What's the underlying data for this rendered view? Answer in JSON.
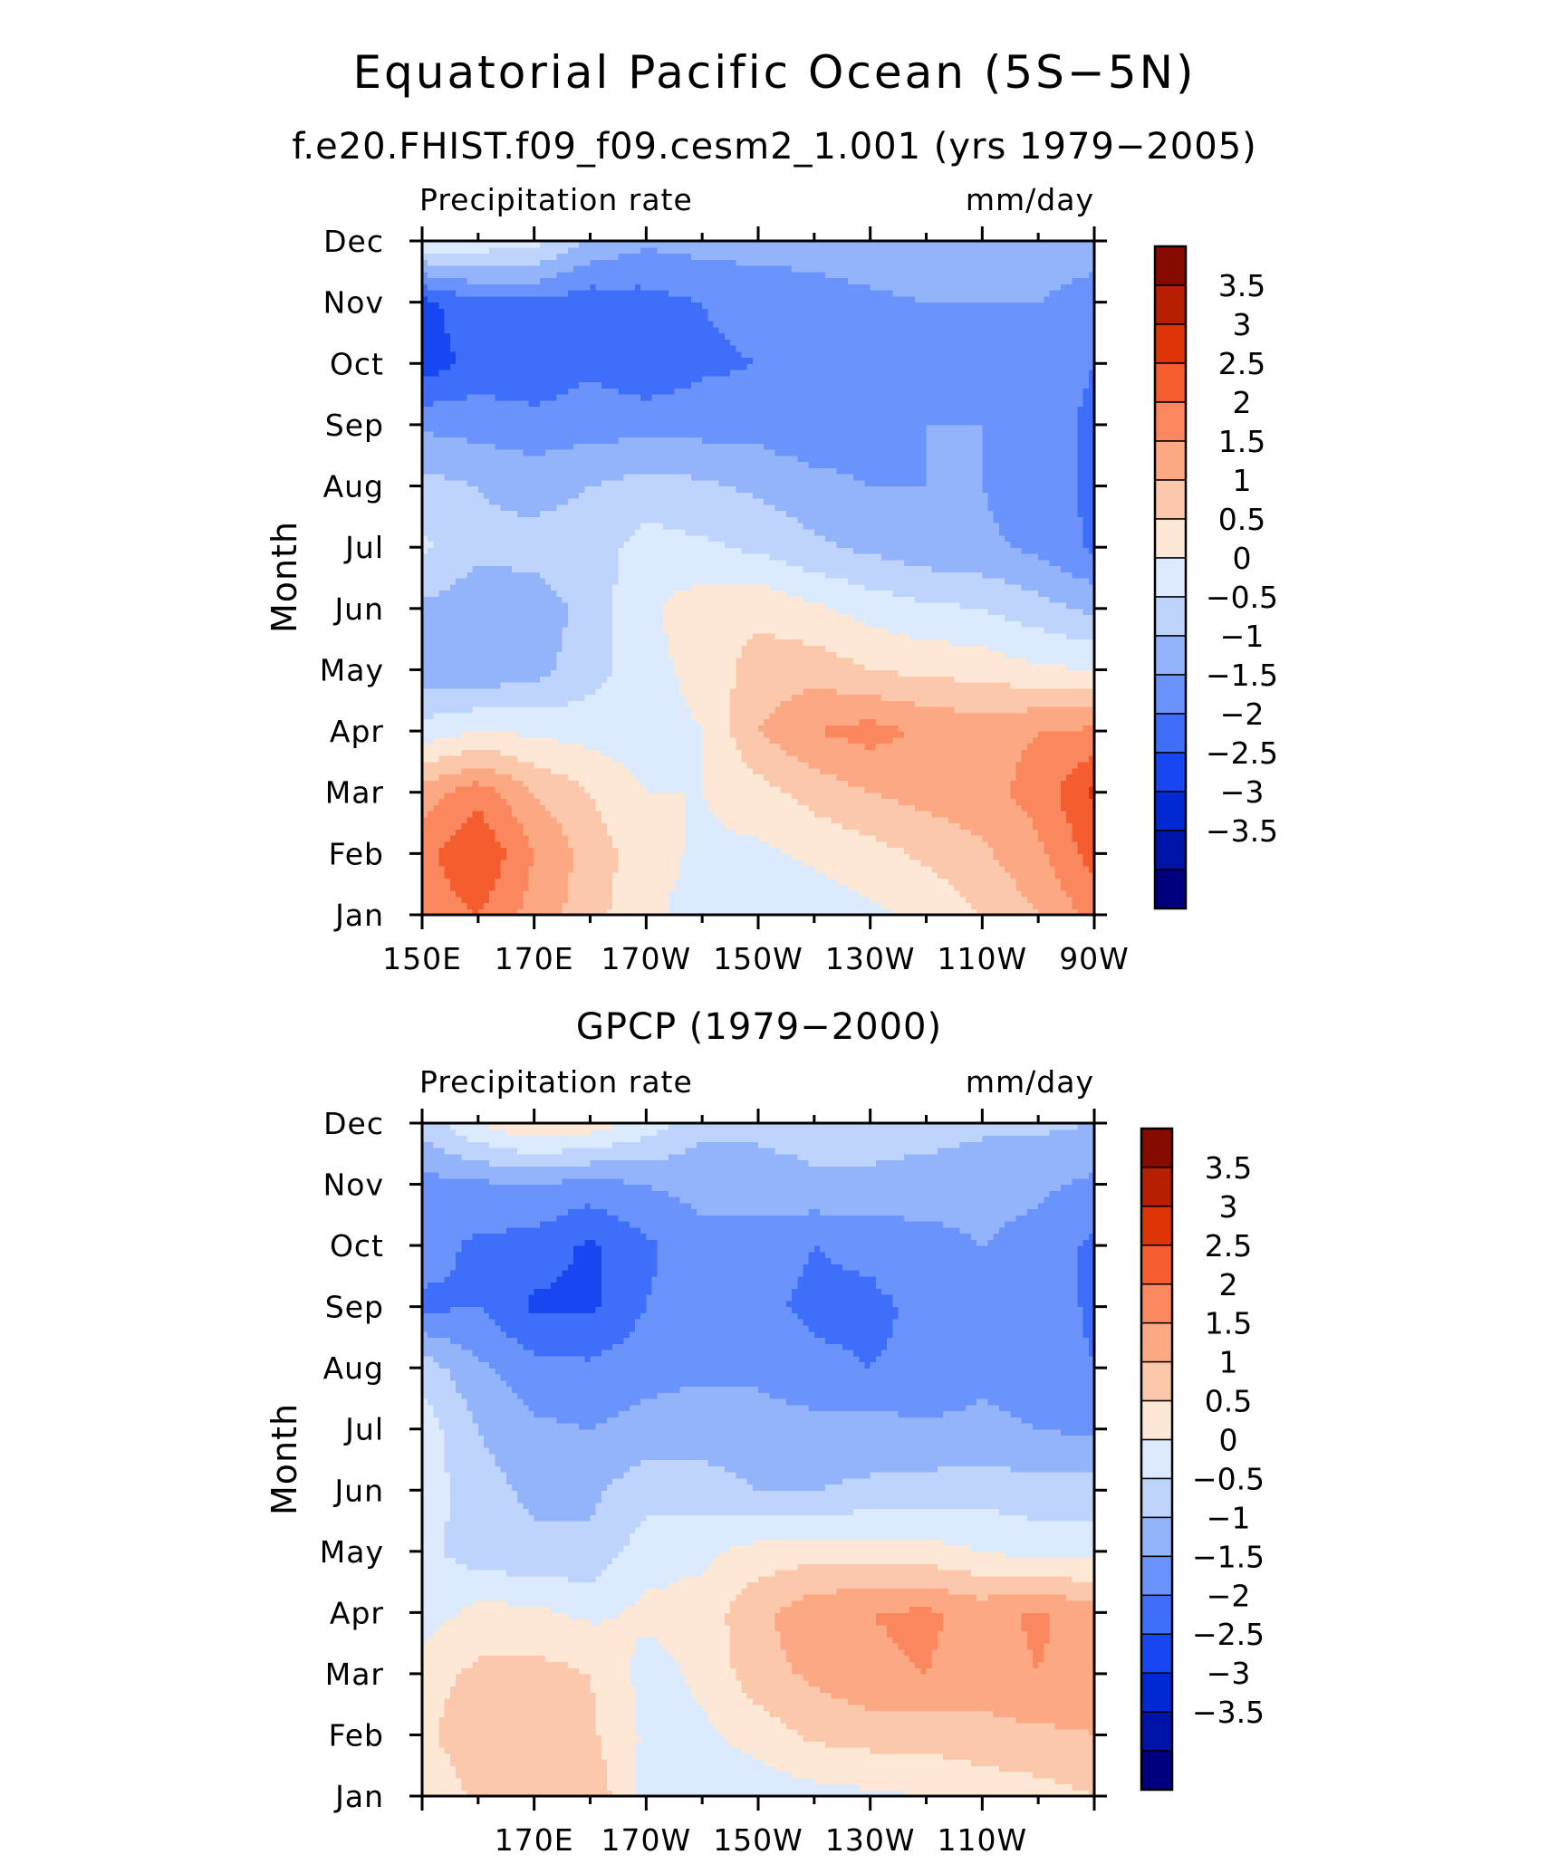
{
  "figure": {
    "title": "Equatorial Pacific Ocean (5S−5N)"
  },
  "colorbar": {
    "colors": [
      "#00007f",
      "#0013a8",
      "#0029d4",
      "#1747f0",
      "#3f6ffa",
      "#6a94fb",
      "#93b4fb",
      "#bfd4fc",
      "#dceafd",
      "#fde8d6",
      "#fcc8ab",
      "#fca882",
      "#fb875e",
      "#f65d2e",
      "#df3506",
      "#b81f00",
      "#850a00"
    ],
    "tick_labels": [
      "3.5",
      "3",
      "2.5",
      "2",
      "1.5",
      "1",
      "0.5",
      "0",
      "−0.5",
      "−1",
      "−1.5",
      "−2",
      "−2.5",
      "−3",
      "−3.5"
    ]
  },
  "chart_data": [
    {
      "type": "heatmap",
      "title": "f.e20.FHIST.f09_f09.cesm2_1.001 (yrs 1979−2005)",
      "left_string": "Precipitation rate",
      "right_string": "mm/day",
      "xlabel": "",
      "ylabel": "Month",
      "x_ticks": [
        "150E",
        "170E",
        "170W",
        "150W",
        "130W",
        "110W",
        "90W"
      ],
      "y_ticks": [
        "Jan",
        "Feb",
        "Mar",
        "Apr",
        "May",
        "Jun",
        "Jul",
        "Aug",
        "Sep",
        "Oct",
        "Nov",
        "Dec"
      ],
      "x_range": [
        150,
        270
      ],
      "levels": [
        -3.5,
        -3,
        -2.5,
        -2,
        -1.5,
        -1,
        -0.5,
        0,
        0.5,
        1,
        1.5,
        2,
        2.5,
        3,
        3.5
      ],
      "lon": [
        150,
        160,
        170,
        180,
        190,
        200,
        210,
        220,
        230,
        240,
        250,
        260,
        270
      ],
      "months": [
        "Jan",
        "Feb",
        "Mar",
        "Apr",
        "May",
        "Jun",
        "Jul",
        "Aug",
        "Sep",
        "Oct",
        "Nov",
        "Dec"
      ],
      "z": [
        [
          2.2,
          2.5,
          1.8,
          1.2,
          0.6,
          0.3,
          0.2,
          0.2,
          0.4,
          0.6,
          1.0,
          1.5,
          2.2
        ],
        [
          2.3,
          3.0,
          2.0,
          1.3,
          0.7,
          0.4,
          0.4,
          0.6,
          0.8,
          1.1,
          1.4,
          1.9,
          2.7
        ],
        [
          1.7,
          2.3,
          1.5,
          1.0,
          0.5,
          0.5,
          0.8,
          1.2,
          1.5,
          1.7,
          1.8,
          2.2,
          3.1
        ],
        [
          0.2,
          0.5,
          0.4,
          0.3,
          0.2,
          0.5,
          1.5,
          2.0,
          2.2,
          1.9,
          1.8,
          2.0,
          2.1
        ],
        [
          -0.8,
          -0.9,
          -0.7,
          -0.2,
          0.3,
          0.7,
          1.2,
          1.3,
          1.0,
          0.9,
          0.8,
          0.6,
          0.5
        ],
        [
          -0.6,
          -0.8,
          -0.8,
          -0.3,
          0.4,
          0.8,
          0.9,
          0.6,
          0.3,
          0.1,
          0.0,
          -0.3,
          -0.6
        ],
        [
          0.1,
          -0.4,
          -0.3,
          -0.2,
          0.2,
          0.1,
          -0.1,
          -0.4,
          -0.6,
          -0.8,
          -0.9,
          -1.1,
          -1.6
        ],
        [
          -0.3,
          -0.5,
          -0.7,
          -0.5,
          -0.3,
          -0.4,
          -0.6,
          -0.8,
          -1.0,
          -1.0,
          -1.0,
          -1.3,
          -1.6
        ],
        [
          -1.1,
          -1.2,
          -1.3,
          -1.2,
          -1.2,
          -1.2,
          -1.2,
          -1.4,
          -1.3,
          -1.0,
          -1.0,
          -1.3,
          -1.6
        ],
        [
          -2.3,
          -1.8,
          -1.9,
          -1.6,
          -1.9,
          -1.6,
          -1.5,
          -1.4,
          -1.4,
          -1.1,
          -1.0,
          -1.3,
          -1.5
        ],
        [
          -2.2,
          -1.6,
          -1.6,
          -1.8,
          -1.7,
          -1.5,
          -1.3,
          -1.2,
          -1.1,
          -1.0,
          -1.0,
          -1.0,
          -1.3
        ],
        [
          0.4,
          0.3,
          0.2,
          -0.6,
          -0.9,
          -0.8,
          -0.8,
          -0.8,
          -0.7,
          -0.6,
          -0.6,
          -0.6,
          -0.7
        ]
      ]
    },
    {
      "type": "heatmap",
      "title": "GPCP (1979−2000)",
      "left_string": "Precipitation rate",
      "right_string": "mm/day",
      "xlabel": "",
      "ylabel": "Month",
      "x_ticks": [
        "170E",
        "170W",
        "150W",
        "130W",
        "110W"
      ],
      "y_ticks": [
        "Jan",
        "Feb",
        "Mar",
        "Apr",
        "May",
        "Jun",
        "Jul",
        "Aug",
        "Sep",
        "Oct",
        "Nov",
        "Dec"
      ],
      "x_range": [
        150,
        270
      ],
      "levels": [
        -3.5,
        -3,
        -2.5,
        -2,
        -1.5,
        -1,
        -0.5,
        0,
        0.5,
        1,
        1.5,
        2,
        2.5,
        3,
        3.5
      ],
      "lon": [
        150,
        160,
        170,
        180,
        190,
        200,
        210,
        220,
        230,
        240,
        250,
        260,
        270
      ],
      "months": [
        "Jan",
        "Feb",
        "Mar",
        "Apr",
        "May",
        "Jun",
        "Jul",
        "Aug",
        "Sep",
        "Oct",
        "Nov",
        "Dec"
      ],
      "z": [
        [
          0.6,
          1.1,
          1.3,
          1.4,
          0.3,
          0.1,
          0.2,
          0.3,
          0.4,
          0.5,
          0.7,
          0.8,
          1.0
        ],
        [
          0.9,
          1.3,
          1.2,
          1.1,
          0.4,
          0.4,
          0.7,
          1.1,
          1.2,
          1.2,
          1.3,
          1.4,
          1.5
        ],
        [
          0.8,
          1.1,
          1.2,
          1.0,
          0.3,
          0.6,
          1.3,
          1.6,
          1.9,
          2.0,
          1.8,
          2.0,
          1.7
        ],
        [
          0.2,
          0.7,
          0.6,
          0.4,
          0.6,
          0.7,
          1.4,
          1.8,
          2.0,
          2.1,
          1.8,
          2.1,
          1.7
        ],
        [
          0.2,
          -0.3,
          -0.4,
          -0.4,
          0.3,
          0.4,
          0.7,
          0.8,
          0.8,
          0.7,
          0.5,
          0.3,
          0.3
        ],
        [
          0.3,
          -0.3,
          -0.6,
          -0.6,
          -0.2,
          -0.3,
          -0.5,
          -0.5,
          -0.4,
          -0.3,
          -0.2,
          -0.3,
          -0.3
        ],
        [
          0.3,
          -0.5,
          -0.9,
          -1.0,
          -0.8,
          -0.7,
          -0.8,
          -0.8,
          -0.8,
          -0.9,
          -0.9,
          -1.0,
          -1.1
        ],
        [
          -0.2,
          -0.9,
          -1.3,
          -1.4,
          -1.2,
          -1.1,
          -1.1,
          -1.4,
          -1.5,
          -1.4,
          -1.1,
          -1.2,
          -1.5
        ],
        [
          -1.6,
          -1.5,
          -2.1,
          -2.1,
          -1.5,
          -1.2,
          -1.4,
          -1.6,
          -1.6,
          -1.4,
          -1.1,
          -1.2,
          -1.6
        ],
        [
          -1.3,
          -1.6,
          -1.7,
          -2.1,
          -1.6,
          -1.2,
          -1.3,
          -1.5,
          -1.4,
          -1.2,
          -1.0,
          -1.2,
          -1.6
        ],
        [
          -1.2,
          -1.1,
          -1.0,
          -1.2,
          -1.0,
          -0.8,
          -0.7,
          -0.6,
          -0.6,
          -0.7,
          -0.8,
          -0.9,
          -1.1
        ],
        [
          -0.3,
          0.5,
          1.0,
          0.8,
          0.3,
          -0.4,
          -0.4,
          -0.3,
          -0.3,
          -0.3,
          -0.4,
          -0.4,
          -0.5
        ]
      ]
    }
  ]
}
